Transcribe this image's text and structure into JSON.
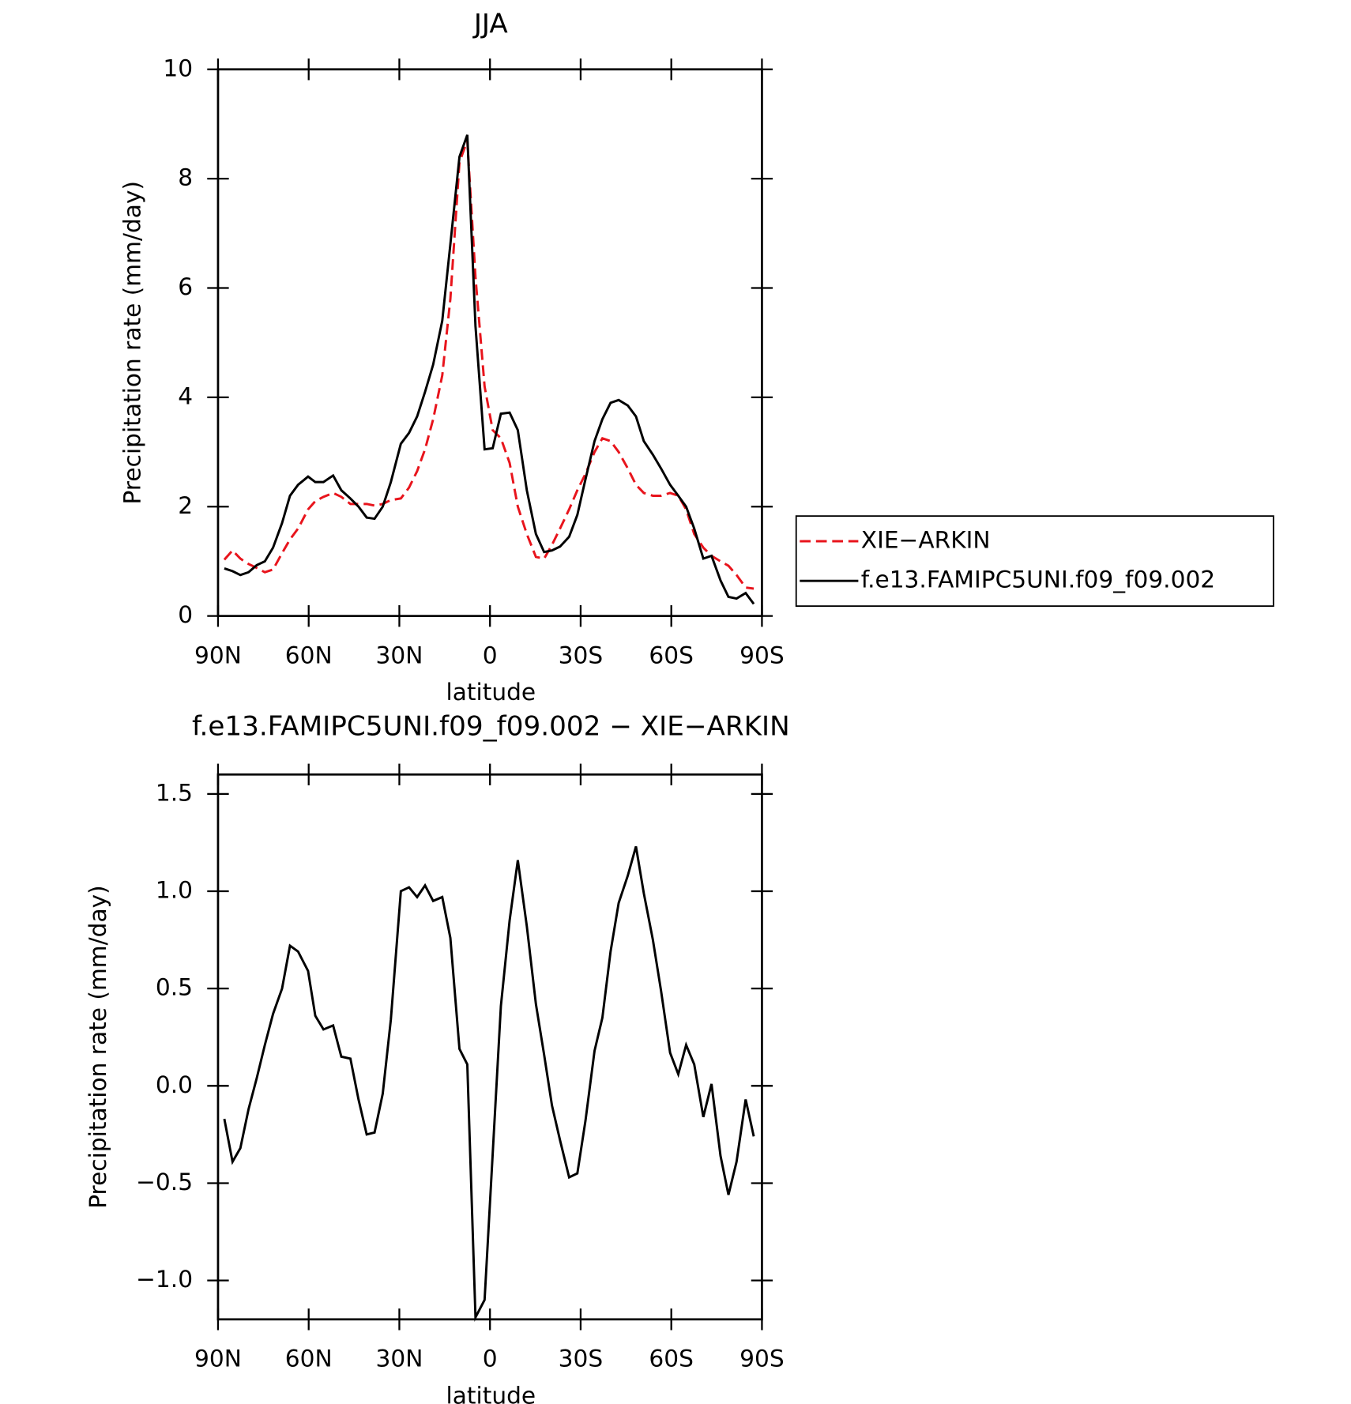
{
  "chart_data": [
    {
      "type": "line",
      "title": "JJA",
      "xlabel": "latitude",
      "ylabel": "Precipitation rate (mm/day)",
      "x": [
        87.9,
        85.2,
        82.6,
        79.9,
        77.2,
        74.5,
        71.8,
        68.8,
        66.2,
        63.5,
        60.2,
        57.8,
        55.1,
        51.9,
        49.2,
        46.2,
        43.5,
        40.8,
        38.2,
        35.5,
        32.8,
        29.5,
        26.8,
        24.1,
        21.5,
        18.8,
        15.8,
        13.1,
        10.1,
        7.5,
        4.8,
        1.8,
        -0.9,
        -3.6,
        -6.5,
        -9.2,
        -12.2,
        -15.2,
        -17.9,
        -20.5,
        -23.2,
        -26.2,
        -28.9,
        -31.6,
        -34.6,
        -37.2,
        -39.9,
        -42.6,
        -45.6,
        -48.3,
        -50.9,
        -53.9,
        -56.6,
        -59.6,
        -62.3,
        -64.9,
        -67.6,
        -70.6,
        -73.3,
        -76.3,
        -78.9,
        -81.6,
        -84.6,
        -87.3
      ],
      "xlim": [
        90,
        -90
      ],
      "xticks": [
        {
          "value": 90,
          "label": "90N"
        },
        {
          "value": 60,
          "label": "60N"
        },
        {
          "value": 30,
          "label": "30N"
        },
        0,
        {
          "value": -30,
          "label": "30S"
        },
        {
          "value": -60,
          "label": "60S"
        },
        {
          "value": -90,
          "label": "90S"
        }
      ],
      "ylim": [
        0,
        10
      ],
      "yticks": [
        0,
        2,
        4,
        6,
        8,
        10
      ],
      "legend": "right",
      "series": [
        {
          "name": "XIE−ARKIN",
          "color": "#e8141c",
          "linestyle": "dashed",
          "values": [
            1.03,
            1.2,
            1.05,
            0.95,
            0.88,
            0.8,
            0.85,
            1.15,
            1.4,
            1.6,
            1.95,
            2.1,
            2.18,
            2.25,
            2.18,
            2.05,
            2.05,
            2.05,
            2.02,
            2.05,
            2.12,
            2.15,
            2.35,
            2.65,
            3.05,
            3.6,
            4.4,
            5.8,
            8.3,
            8.7,
            6.2,
            4.2,
            3.4,
            3.25,
            2.8,
            2.0,
            1.5,
            1.08,
            1.05,
            1.3,
            1.6,
            1.95,
            2.3,
            2.6,
            3.0,
            3.25,
            3.2,
            3.0,
            2.7,
            2.4,
            2.25,
            2.2,
            2.2,
            2.25,
            2.2,
            1.95,
            1.5,
            1.25,
            1.1,
            1.0,
            0.92,
            0.75,
            0.52,
            0.5
          ]
        },
        {
          "name": "f.e13.FAMIPC5UNI.f09_f09.002",
          "color": "#000000",
          "linestyle": "solid",
          "values": [
            0.87,
            0.82,
            0.75,
            0.8,
            0.93,
            1.0,
            1.25,
            1.7,
            2.2,
            2.4,
            2.55,
            2.45,
            2.45,
            2.57,
            2.3,
            2.15,
            2.0,
            1.8,
            1.78,
            2.0,
            2.45,
            3.15,
            3.35,
            3.65,
            4.1,
            4.6,
            5.4,
            6.8,
            8.4,
            8.8,
            5.3,
            3.05,
            3.07,
            3.7,
            3.72,
            3.4,
            2.3,
            1.5,
            1.17,
            1.2,
            1.27,
            1.45,
            1.85,
            2.5,
            3.2,
            3.6,
            3.9,
            3.95,
            3.85,
            3.65,
            3.2,
            2.95,
            2.7,
            2.4,
            2.2,
            2.0,
            1.6,
            1.05,
            1.1,
            0.65,
            0.35,
            0.32,
            0.42,
            0.22
          ]
        }
      ]
    },
    {
      "type": "line",
      "title": "f.e13.FAMIPC5UNI.f09_f09.002 − XIE−ARKIN",
      "xlabel": "latitude",
      "ylabel": "Precipitation rate (mm/day)",
      "x": [
        87.9,
        85.2,
        82.6,
        79.9,
        77.2,
        74.5,
        71.8,
        68.8,
        66.2,
        63.5,
        60.2,
        57.8,
        55.1,
        51.9,
        49.2,
        46.2,
        43.5,
        40.8,
        38.2,
        35.5,
        32.8,
        29.5,
        26.8,
        24.1,
        21.5,
        18.8,
        15.8,
        13.1,
        10.1,
        7.5,
        4.8,
        1.8,
        -0.9,
        -3.6,
        -6.5,
        -9.2,
        -12.2,
        -15.2,
        -17.9,
        -20.5,
        -23.2,
        -26.2,
        -28.9,
        -31.6,
        -34.6,
        -37.2,
        -39.9,
        -42.6,
        -45.6,
        -48.3,
        -50.9,
        -53.9,
        -56.6,
        -59.6,
        -62.3,
        -64.9,
        -67.6,
        -70.6,
        -73.3,
        -76.3,
        -78.9,
        -81.6,
        -84.6,
        -87.3
      ],
      "xlim": [
        90,
        -90
      ],
      "xticks": [
        {
          "value": 90,
          "label": "90N"
        },
        {
          "value": 60,
          "label": "60N"
        },
        {
          "value": 30,
          "label": "30N"
        },
        0,
        {
          "value": -30,
          "label": "30S"
        },
        {
          "value": -60,
          "label": "60S"
        },
        {
          "value": -90,
          "label": "90S"
        }
      ],
      "ylim": [
        -1.2,
        1.6
      ],
      "yticks": [
        {
          "value": -1.0,
          "label": "−1.0"
        },
        {
          "value": -0.5,
          "label": "−0.5"
        },
        {
          "value": 0,
          "label": "0.0"
        },
        0.5,
        {
          "value": 1.0,
          "label": "1.0"
        },
        1.5
      ],
      "color": "#000000",
      "values": [
        -0.17,
        -0.39,
        -0.32,
        -0.12,
        0.04,
        0.21,
        0.37,
        0.5,
        0.72,
        0.69,
        0.59,
        0.36,
        0.29,
        0.31,
        0.15,
        0.14,
        -0.07,
        -0.25,
        -0.24,
        -0.04,
        0.34,
        1.0,
        1.02,
        0.97,
        1.03,
        0.95,
        0.97,
        0.76,
        0.19,
        0.11,
        -1.19,
        -1.1,
        -0.35,
        0.41,
        0.85,
        1.16,
        0.82,
        0.42,
        0.16,
        -0.1,
        -0.28,
        -0.47,
        -0.45,
        -0.18,
        0.18,
        0.35,
        0.69,
        0.94,
        1.08,
        1.23,
        0.99,
        0.75,
        0.49,
        0.17,
        0.06,
        0.21,
        0.11,
        -0.16,
        0.01,
        -0.36,
        -0.56,
        -0.39,
        -0.07,
        -0.26
      ]
    }
  ]
}
